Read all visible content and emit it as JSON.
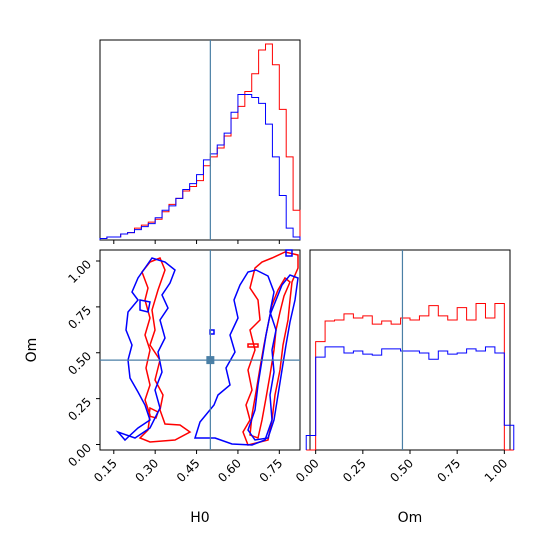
{
  "chart_data": {
    "type": "corner",
    "colors": {
      "red": "#ff0000",
      "blue": "#0000ff",
      "truth": "#4a7fa5"
    },
    "truth": {
      "H0": 0.5,
      "Om": 0.46
    },
    "H0_hist": {
      "bin_edges": [
        0.1,
        0.125,
        0.15,
        0.175,
        0.2,
        0.225,
        0.25,
        0.275,
        0.3,
        0.325,
        0.35,
        0.375,
        0.4,
        0.425,
        0.45,
        0.475,
        0.5,
        0.525,
        0.55,
        0.575,
        0.6,
        0.625,
        0.65,
        0.675,
        0.7,
        0.725,
        0.75,
        0.775,
        0.8,
        0.825
      ],
      "red": [
        1,
        2,
        2,
        4,
        5,
        8,
        10,
        12,
        14,
        19,
        24,
        28,
        33,
        36,
        40,
        50,
        56,
        62,
        70,
        82,
        90,
        100,
        112,
        128,
        132,
        118,
        88,
        56,
        20
      ],
      "blue": [
        1,
        2,
        2,
        4,
        5,
        7,
        9,
        11,
        15,
        20,
        23,
        28,
        34,
        38,
        44,
        54,
        58,
        64,
        72,
        86,
        98,
        98,
        96,
        92,
        78,
        56,
        30,
        8,
        2
      ]
    },
    "Om_hist": {
      "bin_edges": [
        -0.05,
        0.0,
        0.05,
        0.1,
        0.15,
        0.2,
        0.25,
        0.3,
        0.35,
        0.4,
        0.45,
        0.5,
        0.55,
        0.6,
        0.65,
        0.7,
        0.75,
        0.8,
        0.85,
        0.9,
        0.95,
        1.0,
        1.05
      ],
      "red": [
        0,
        105,
        125,
        126,
        132,
        128,
        130,
        122,
        125,
        122,
        128,
        126,
        130,
        140,
        130,
        126,
        138,
        126,
        142,
        128,
        142,
        0
      ],
      "blue": [
        14,
        90,
        100,
        100,
        94,
        96,
        93,
        92,
        98,
        98,
        96,
        96,
        94,
        88,
        96,
        93,
        94,
        98,
        96,
        100,
        94,
        24
      ]
    },
    "xaxis_H0": {
      "label": "H0",
      "ticks": [
        "0.15",
        "0.30",
        "0.45",
        "0.60",
        "0.75"
      ],
      "range": [
        0.1,
        0.825
      ]
    },
    "xaxis_Om": {
      "label": "Om",
      "ticks": [
        "0.00",
        "0.25",
        "0.50",
        "0.75",
        "1.00"
      ],
      "range": [
        -0.03,
        1.03
      ]
    },
    "yaxis_Om": {
      "label": "Om",
      "ticks": [
        "0.00",
        "0.25",
        "0.50",
        "0.75",
        "1.00"
      ],
      "range": [
        -0.03,
        1.06
      ]
    }
  }
}
